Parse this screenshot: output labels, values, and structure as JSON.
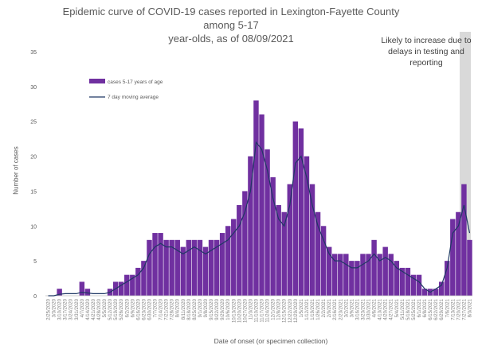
{
  "chart_data": {
    "type": "bar",
    "title_line1": "Epidemic curve of COVID-19 cases reported in Lexington-Fayette County among 5-17",
    "title_line2": "year-olds, as of 08/09/2021",
    "annotation": "Likely to increase due to delays in testing and reporting",
    "xlabel": "Date of onset (or specimen collection)",
    "ylabel": "Number of cases",
    "ylim": [
      0,
      35
    ],
    "yticks": [
      0,
      5,
      10,
      15,
      20,
      25,
      30,
      35
    ],
    "legend": {
      "position": "top-left",
      "bars": "cases 5-17 years of age",
      "line": "7 day moving average"
    },
    "colors": {
      "bars": "#7030a0",
      "line": "#1f3864",
      "shade": "#d9d9d9"
    },
    "categories": [
      "2/25/2020",
      "3/3/2020",
      "3/10/2020",
      "3/17/2020",
      "3/24/2020",
      "3/31/2020",
      "4/7/2020",
      "4/14/2020",
      "4/21/2020",
      "4/28/2020",
      "5/5/2020",
      "5/12/2020",
      "5/19/2020",
      "5/26/2020",
      "6/2/2020",
      "6/9/2020",
      "6/16/2020",
      "6/23/2020",
      "6/30/2020",
      "7/7/2020",
      "7/14/2020",
      "7/21/2020",
      "7/28/2020",
      "8/4/2020",
      "8/11/2020",
      "8/18/2020",
      "8/25/2020",
      "9/1/2020",
      "9/8/2020",
      "9/15/2020",
      "9/22/2020",
      "9/29/2020",
      "10/6/2020",
      "10/13/2020",
      "10/20/2020",
      "10/27/2020",
      "11/3/2020",
      "11/10/2020",
      "11/17/2020",
      "11/24/2020",
      "12/1/2020",
      "12/8/2020",
      "12/15/2020",
      "12/22/2020",
      "12/29/2020",
      "1/5/2021",
      "1/12/2021",
      "1/19/2021",
      "1/26/2021",
      "2/2/2021",
      "2/9/2021",
      "2/16/2021",
      "2/23/2021",
      "3/2/2021",
      "3/9/2021",
      "3/16/2021",
      "3/23/2021",
      "3/30/2021",
      "4/6/2021",
      "4/13/2021",
      "4/20/2021",
      "4/27/2021",
      "5/4/2021",
      "5/11/2021",
      "5/18/2021",
      "5/25/2021",
      "6/1/2021",
      "6/8/2021",
      "6/15/2021",
      "6/22/2021",
      "6/29/2021",
      "7/6/2021",
      "7/13/2021",
      "7/20/2021",
      "7/27/2021",
      "8/3/2021"
    ],
    "series": [
      {
        "name": "cases 5-17 years of age",
        "type": "bar",
        "values": [
          0,
          0,
          1,
          0,
          0,
          0,
          2,
          1,
          0,
          0,
          0,
          1,
          2,
          2,
          3,
          3,
          4,
          5,
          8,
          9,
          9,
          8,
          8,
          8,
          7,
          8,
          8,
          8,
          7,
          8,
          8,
          9,
          10,
          11,
          13,
          15,
          20,
          28,
          26,
          21,
          17,
          13,
          12,
          16,
          25,
          24,
          20,
          16,
          12,
          10,
          7,
          6,
          6,
          6,
          5,
          5,
          6,
          6,
          8,
          6,
          7,
          6,
          5,
          4,
          4,
          3,
          3,
          1,
          1,
          1,
          2,
          5,
          11,
          12,
          16,
          8
        ]
      },
      {
        "name": "7 day moving average",
        "type": "line",
        "values": [
          0,
          0,
          0.2,
          0.3,
          0.3,
          0.3,
          0.5,
          0.4,
          0.3,
          0.3,
          0.3,
          0.5,
          1,
          1.5,
          2,
          2.5,
          3,
          4,
          6,
          7,
          7.5,
          7,
          7,
          6.5,
          6,
          6.5,
          7,
          6.5,
          6,
          6.5,
          7,
          7.5,
          8,
          9,
          10,
          12,
          15,
          22,
          21,
          18,
          14,
          11,
          10,
          13,
          19,
          20,
          17,
          13,
          10,
          8,
          6,
          5,
          5,
          4.5,
          4,
          4,
          4.5,
          5,
          6,
          5,
          5.5,
          5,
          4,
          3.5,
          3,
          2.5,
          2,
          1,
          0.5,
          1,
          1.5,
          4,
          9,
          10,
          13,
          9
        ]
      }
    ],
    "shaded_region": [
      "7/30/2021",
      "8/9/2021"
    ]
  }
}
